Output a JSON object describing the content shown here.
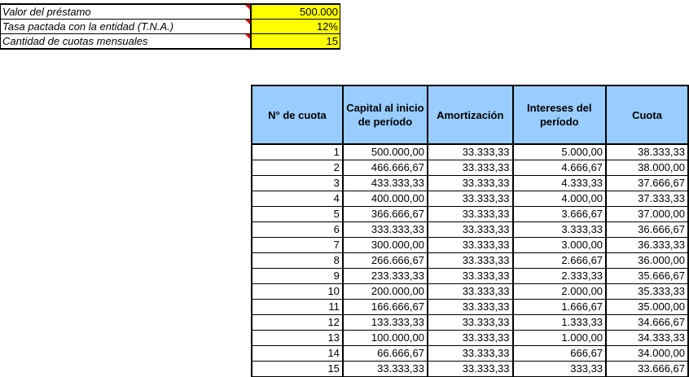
{
  "params": [
    {
      "label": "Valor  del préstamo",
      "value": "500.000"
    },
    {
      "label": "Tasa pactada con la entidad (T.N.A.)",
      "value": "12%"
    },
    {
      "label": "Cantidad de cuotas mensuales",
      "value": "15"
    }
  ],
  "colors": {
    "input_fill": "#ffff00",
    "header_fill": "#99ccff",
    "comment_marker": "#e00000"
  },
  "table": {
    "headers": [
      "N° de cuota",
      "Capital al inicio de período",
      "Amortización",
      "Intereses del período",
      "Cuota"
    ],
    "rows": [
      [
        "1",
        "500.000,00",
        "33.333,33",
        "5.000,00",
        "38.333,33"
      ],
      [
        "2",
        "466.666,67",
        "33.333,33",
        "4.666,67",
        "38.000,00"
      ],
      [
        "3",
        "433.333,33",
        "33.333,33",
        "4.333,33",
        "37.666,67"
      ],
      [
        "4",
        "400.000,00",
        "33.333,33",
        "4.000,00",
        "37.333,33"
      ],
      [
        "5",
        "366.666,67",
        "33.333,33",
        "3.666,67",
        "37.000,00"
      ],
      [
        "6",
        "333.333,33",
        "33.333,33",
        "3.333,33",
        "36.666,67"
      ],
      [
        "7",
        "300.000,00",
        "33.333,33",
        "3.000,00",
        "36.333,33"
      ],
      [
        "8",
        "266.666,67",
        "33.333,33",
        "2.666,67",
        "36.000,00"
      ],
      [
        "9",
        "233.333,33",
        "33.333,33",
        "2.333,33",
        "35.666,67"
      ],
      [
        "10",
        "200.000,00",
        "33.333,33",
        "2.000,00",
        "35.333,33"
      ],
      [
        "11",
        "166.666,67",
        "33.333,33",
        "1.666,67",
        "35.000,00"
      ],
      [
        "12",
        "133.333,33",
        "33.333,33",
        "1.333,33",
        "34.666,67"
      ],
      [
        "13",
        "100.000,00",
        "33.333,33",
        "1.000,00",
        "34.333,33"
      ],
      [
        "14",
        "66.666,67",
        "33.333,33",
        "666,67",
        "34.000,00"
      ],
      [
        "15",
        "33.333,33",
        "33.333,33",
        "333,33",
        "33.666,67"
      ]
    ]
  }
}
